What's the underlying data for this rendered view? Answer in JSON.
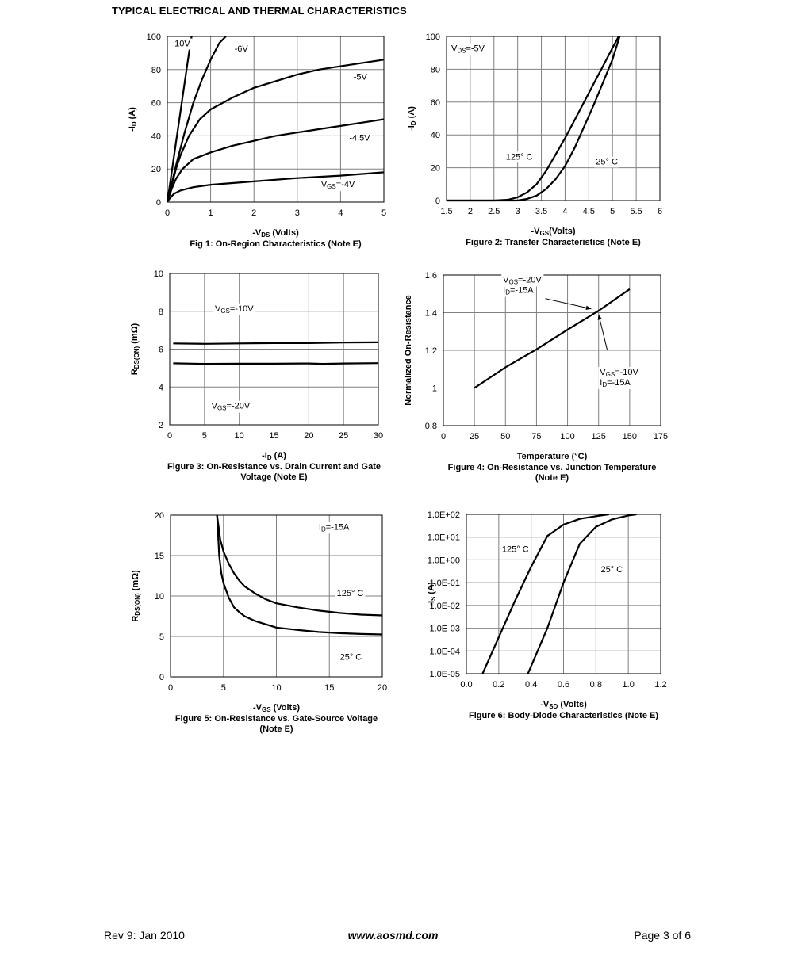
{
  "header": {
    "title": "TYPICAL ELECTRICAL AND THERMAL CHARACTERISTICS"
  },
  "footer": {
    "rev": "Rev 9: Jan 2010",
    "url": "www.aosmd.com",
    "page": "Page 3 of 6"
  },
  "chart_data": [
    {
      "id": "fig1",
      "type": "line",
      "caption": [
        "Fig 1: On-Region Characteristics (Note E)"
      ],
      "xlabel": {
        "pre": "-V",
        "sub": "DS",
        "post": " (Volts)"
      },
      "ylabel": {
        "pre": "-I",
        "sub": "D",
        "post": " (A)"
      },
      "xlim": [
        0,
        5
      ],
      "ylim": [
        0,
        100
      ],
      "xticks": [
        0,
        1,
        2,
        3,
        4,
        5
      ],
      "yticks": [
        0,
        20,
        40,
        60,
        80,
        100
      ],
      "series": [
        {
          "name": "-10V",
          "points": [
            [
              0,
              0
            ],
            [
              0.1,
              18
            ],
            [
              0.2,
              36
            ],
            [
              0.3,
              54
            ],
            [
              0.4,
              72
            ],
            [
              0.5,
              90
            ],
            [
              0.56,
              100
            ]
          ]
        },
        {
          "name": "-6V",
          "points": [
            [
              0,
              0
            ],
            [
              0.1,
              11
            ],
            [
              0.2,
              22
            ],
            [
              0.4,
              42
            ],
            [
              0.6,
              60
            ],
            [
              0.8,
              74
            ],
            [
              1.0,
              86
            ],
            [
              1.2,
              96
            ],
            [
              1.35,
              100
            ]
          ]
        },
        {
          "name": "-5V",
          "points": [
            [
              0,
              0
            ],
            [
              0.1,
              10
            ],
            [
              0.2,
              20
            ],
            [
              0.3,
              28
            ],
            [
              0.5,
              40
            ],
            [
              0.75,
              50
            ],
            [
              1.0,
              56
            ],
            [
              1.5,
              63
            ],
            [
              2,
              69
            ],
            [
              2.5,
              73
            ],
            [
              3,
              77
            ],
            [
              3.5,
              80
            ],
            [
              4,
              82
            ],
            [
              4.5,
              84
            ],
            [
              5,
              86
            ]
          ]
        },
        {
          "name": "-4.5V",
          "points": [
            [
              0,
              0
            ],
            [
              0.1,
              8
            ],
            [
              0.2,
              14
            ],
            [
              0.35,
              20
            ],
            [
              0.6,
              26
            ],
            [
              1.0,
              30
            ],
            [
              1.5,
              34
            ],
            [
              2,
              37
            ],
            [
              2.5,
              40
            ],
            [
              3,
              42
            ],
            [
              3.5,
              44
            ],
            [
              4,
              46
            ],
            [
              4.5,
              48
            ],
            [
              5,
              50
            ]
          ]
        },
        {
          "name": "V_GS=-4V",
          "points": [
            [
              0,
              0
            ],
            [
              0.05,
              2
            ],
            [
              0.15,
              5
            ],
            [
              0.3,
              7
            ],
            [
              0.6,
              9
            ],
            [
              1.0,
              10.5
            ],
            [
              2,
              12.5
            ],
            [
              3,
              14.5
            ],
            [
              4,
              16
            ],
            [
              5,
              18
            ]
          ]
        }
      ],
      "annotations": [
        {
          "text": "-10V",
          "x": 0.1,
          "y": 94
        },
        {
          "text": "-6V",
          "x": 1.55,
          "y": 91
        },
        {
          "text": "-5V",
          "x": 4.3,
          "y": 74
        },
        {
          "text": "-4.5V",
          "x": 4.2,
          "y": 37
        },
        {
          "pre": "V",
          "sub": "GS",
          "post": "=-4V",
          "x": 3.55,
          "y": 9
        }
      ]
    },
    {
      "id": "fig2",
      "type": "line",
      "caption": [
        "Figure 2: Transfer Characteristics (Note E)"
      ],
      "xlabel": {
        "pre": "-V",
        "sub": "GS",
        "post": "(Volts)"
      },
      "ylabel": {
        "pre": "-I",
        "sub": "D",
        "post": " (A)"
      },
      "xlim": [
        1.5,
        6
      ],
      "ylim": [
        0,
        100
      ],
      "xticks": [
        1.5,
        2,
        2.5,
        3,
        3.5,
        4,
        4.5,
        5,
        5.5,
        6
      ],
      "yticks": [
        0,
        20,
        40,
        60,
        80,
        100
      ],
      "series": [
        {
          "name": "125°C",
          "points": [
            [
              1.5,
              0
            ],
            [
              2.5,
              0
            ],
            [
              2.8,
              0.5
            ],
            [
              3.0,
              2
            ],
            [
              3.2,
              5
            ],
            [
              3.4,
              10
            ],
            [
              3.6,
              18
            ],
            [
              3.8,
              28
            ],
            [
              4.0,
              38
            ],
            [
              4.2,
              49
            ],
            [
              4.4,
              60
            ],
            [
              4.6,
              71
            ],
            [
              4.8,
              82
            ],
            [
              5.0,
              93
            ],
            [
              5.13,
              100
            ]
          ]
        },
        {
          "name": "25°C",
          "points": [
            [
              1.5,
              0
            ],
            [
              3.0,
              0
            ],
            [
              3.2,
              1
            ],
            [
              3.4,
              3
            ],
            [
              3.6,
              7
            ],
            [
              3.8,
              13
            ],
            [
              4.0,
              21
            ],
            [
              4.2,
              32
            ],
            [
              4.4,
              45
            ],
            [
              4.6,
              58
            ],
            [
              4.8,
              72
            ],
            [
              5.0,
              86
            ],
            [
              5.15,
              100
            ]
          ]
        }
      ],
      "annotations": [
        {
          "pre": "V",
          "sub": "DS",
          "post": "=-5V",
          "x": 1.6,
          "y": 91
        },
        {
          "text": "125° C",
          "x": 2.75,
          "y": 25
        },
        {
          "text": "25° C",
          "x": 4.65,
          "y": 22
        }
      ]
    },
    {
      "id": "fig3",
      "type": "line",
      "caption": [
        "Figure 3: On-Resistance vs. Drain Current and Gate",
        "Voltage (Note E)"
      ],
      "xlabel": {
        "pre": "-I",
        "sub": "D",
        "post": " (A)"
      },
      "ylabel": {
        "pre": "R",
        "sub": "DS(ON)",
        "post": " (mΩ)"
      },
      "xlim": [
        0,
        30
      ],
      "ylim": [
        2,
        10
      ],
      "xticks": [
        0,
        5,
        10,
        15,
        20,
        25,
        30
      ],
      "yticks": [
        2,
        4,
        6,
        8,
        10
      ],
      "series": [
        {
          "name": "V_GS=-10V",
          "points": [
            [
              0.5,
              6.3
            ],
            [
              5,
              6.28
            ],
            [
              10,
              6.3
            ],
            [
              15,
              6.32
            ],
            [
              20,
              6.32
            ],
            [
              25,
              6.35
            ],
            [
              30,
              6.36
            ]
          ]
        },
        {
          "name": "V_GS=-20V",
          "points": [
            [
              0.5,
              5.25
            ],
            [
              5,
              5.22
            ],
            [
              10,
              5.23
            ],
            [
              15,
              5.23
            ],
            [
              20,
              5.24
            ],
            [
              22,
              5.22
            ],
            [
              25,
              5.24
            ],
            [
              30,
              5.26
            ]
          ]
        }
      ],
      "annotations": [
        {
          "pre": "V",
          "sub": "GS",
          "post": "=-10V",
          "x": 6.5,
          "y": 8.0
        },
        {
          "pre": "V",
          "sub": "GS",
          "post": "=-20V",
          "x": 6.0,
          "y": 2.85
        }
      ]
    },
    {
      "id": "fig4",
      "type": "line",
      "caption": [
        "Figure 4: On-Resistance vs. Junction Temperature",
        "(Note E)"
      ],
      "xlabel": {
        "pre": "Temperature (°C)",
        "sub": "",
        "post": ""
      },
      "ylabel": {
        "pre": "Normalized On-Resistance",
        "sub": "",
        "post": ""
      },
      "xlim": [
        0,
        175
      ],
      "ylim": [
        0.8,
        1.6
      ],
      "xticks": [
        0,
        25,
        50,
        75,
        100,
        125,
        150,
        175
      ],
      "yticks": [
        0.8,
        1,
        1.2,
        1.4,
        1.6
      ],
      "series": [
        {
          "name": "V_GS=-20V",
          "points": [
            [
              25,
              1.0
            ],
            [
              50,
              1.11
            ],
            [
              75,
              1.205
            ],
            [
              100,
              1.31
            ],
            [
              125,
              1.41
            ],
            [
              150,
              1.525
            ]
          ]
        }
      ],
      "annotations": [
        {
          "pre": "V",
          "sub": "GS",
          "post": "=-20V",
          "x": 48,
          "y": 1.56
        },
        {
          "pre": "I",
          "sub": "D",
          "post": "=-15A",
          "x": 48,
          "y": 1.505
        },
        {
          "pre": "V",
          "sub": "GS",
          "post": "=-10V",
          "x": 126,
          "y": 1.07
        },
        {
          "pre": "I",
          "sub": "D",
          "post": "=-15A",
          "x": 126,
          "y": 1.015
        }
      ]
    },
    {
      "id": "fig5",
      "type": "line",
      "caption": [
        "Figure 5: On-Resistance vs. Gate-Source Voltage",
        "(Note E)"
      ],
      "xlabel": {
        "pre": "-V",
        "sub": "GS",
        "post": " (Volts)"
      },
      "ylabel": {
        "pre": "R",
        "sub": "DS(ON)",
        "post": " (mΩ)"
      },
      "xlim": [
        0,
        20
      ],
      "ylim": [
        0,
        20
      ],
      "xticks": [
        0,
        5,
        10,
        15,
        20
      ],
      "yticks": [
        0,
        5,
        10,
        15,
        20
      ],
      "series": [
        {
          "name": "125°C",
          "points": [
            [
              4.4,
              20
            ],
            [
              4.7,
              17
            ],
            [
              5,
              15.5
            ],
            [
              5.5,
              14
            ],
            [
              6,
              12.8
            ],
            [
              6.5,
              11.9
            ],
            [
              7,
              11.2
            ],
            [
              8,
              10.3
            ],
            [
              9,
              9.6
            ],
            [
              10,
              9.1
            ],
            [
              12,
              8.6
            ],
            [
              14,
              8.2
            ],
            [
              16,
              7.9
            ],
            [
              18,
              7.7
            ],
            [
              20,
              7.6
            ]
          ]
        },
        {
          "name": "25°C",
          "points": [
            [
              4.4,
              20
            ],
            [
              4.6,
              15
            ],
            [
              4.8,
              12.8
            ],
            [
              5,
              11.6
            ],
            [
              5.5,
              9.8
            ],
            [
              6,
              8.6
            ],
            [
              6.5,
              8.0
            ],
            [
              7,
              7.5
            ],
            [
              8,
              6.9
            ],
            [
              9,
              6.5
            ],
            [
              10,
              6.1
            ],
            [
              12,
              5.8
            ],
            [
              14,
              5.55
            ],
            [
              16,
              5.4
            ],
            [
              18,
              5.3
            ],
            [
              20,
              5.25
            ]
          ]
        }
      ],
      "annotations": [
        {
          "pre": "I",
          "sub": "D",
          "post": "=-15A",
          "x": 14.0,
          "y": 18.2
        },
        {
          "text": "125° C",
          "x": 15.7,
          "y": 10.0
        },
        {
          "text": "25° C",
          "x": 16.0,
          "y": 2.1
        }
      ]
    },
    {
      "id": "fig6",
      "type": "line",
      "yscale": "log",
      "caption": [
        "Figure 6: Body-Diode Characteristics (Note E)"
      ],
      "xlabel": {
        "pre": "-V",
        "sub": "SD",
        "post": " (Volts)"
      },
      "ylabel": {
        "pre": "-I",
        "sub": "S",
        "post": " (A)"
      },
      "xlim": [
        0,
        1.2
      ],
      "ylim": [
        -5,
        2
      ],
      "xticks": [
        "0.0",
        "0.2",
        "0.4",
        "0.6",
        "0.8",
        "1.0",
        "1.2"
      ],
      "yticks": [
        "1.0E-05",
        "1.0E-04",
        "1.0E-03",
        "1.0E-02",
        "1.0E-01",
        "1.0E+00",
        "1.0E+01",
        "1.0E+02"
      ],
      "series": [
        {
          "name": "125°C",
          "points": [
            [
              0.1,
              -5
            ],
            [
              0.2,
              -3.4
            ],
            [
              0.3,
              -1.8
            ],
            [
              0.4,
              -0.3
            ],
            [
              0.5,
              1.05
            ],
            [
              0.6,
              1.55
            ],
            [
              0.7,
              1.8
            ],
            [
              0.8,
              1.92
            ],
            [
              0.88,
              2
            ]
          ]
        },
        {
          "name": "25°C",
          "points": [
            [
              0.38,
              -5
            ],
            [
              0.5,
              -3.0
            ],
            [
              0.6,
              -1.0
            ],
            [
              0.7,
              0.7
            ],
            [
              0.8,
              1.45
            ],
            [
              0.9,
              1.78
            ],
            [
              1.0,
              1.95
            ],
            [
              1.05,
              2
            ]
          ]
        }
      ],
      "annotations": [
        {
          "text": "125° C",
          "x": 0.22,
          "y": 0.35
        },
        {
          "text": "25° C",
          "x": 0.83,
          "y": -0.55
        }
      ]
    }
  ]
}
